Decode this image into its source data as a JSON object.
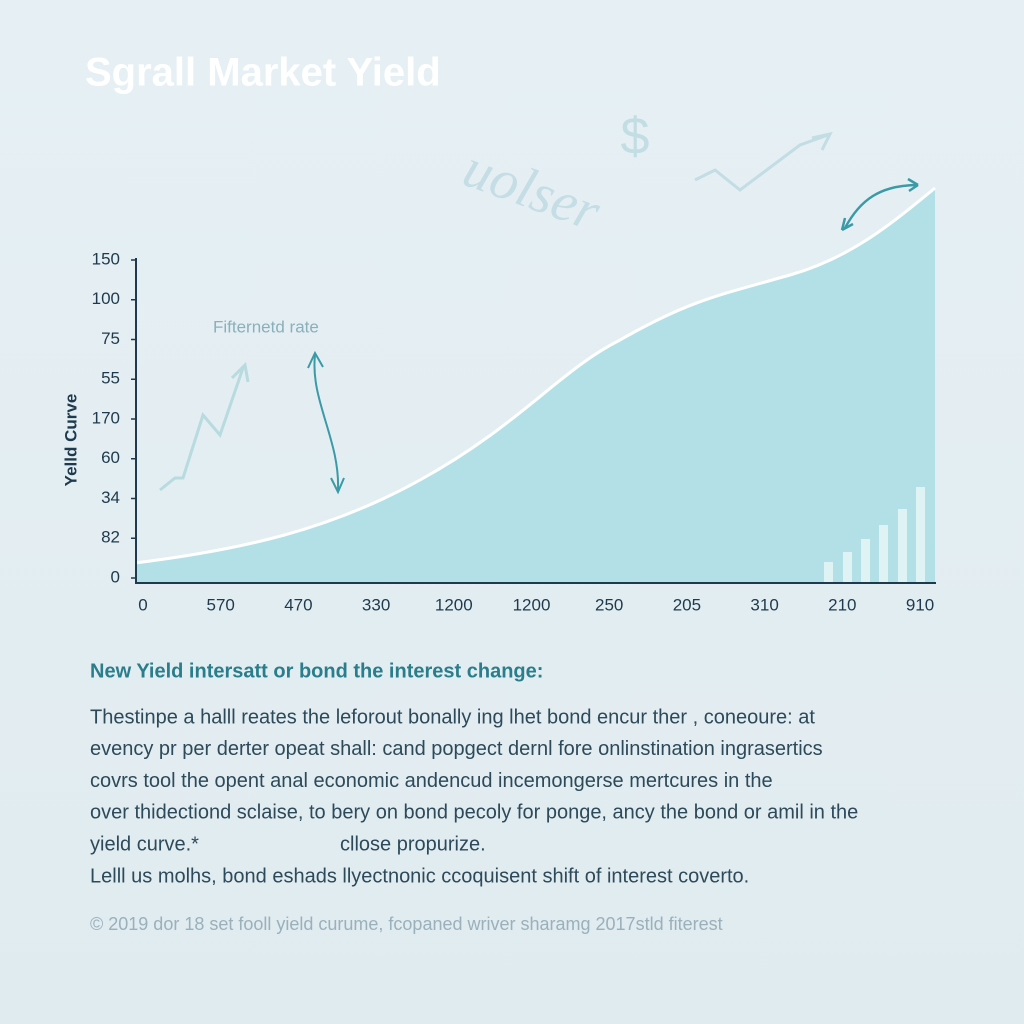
{
  "header": {
    "title": "Sgrall Market Yield"
  },
  "decor": {
    "script_word": "uolser",
    "currency": "$"
  },
  "chart": {
    "axis_label": "Yelld Curve",
    "annotation": "Fifternetd rate",
    "y_labels": [
      "150",
      "100",
      "75",
      "55",
      "170",
      "60",
      "34",
      "82",
      "0"
    ],
    "x_labels": [
      "0",
      "570",
      "470",
      "330",
      "1200",
      "1200",
      "250",
      "205",
      "310",
      "210",
      "910"
    ]
  },
  "body": {
    "heading": "New Yield intersatt or bond the interest change:",
    "lines": [
      "Thestinpe a halll reates the  leforout bonally ing lhet bond encur ther , coneoure: at",
      "evency pr per derter opeat shall: cand popgect dernl fore onlinstination ingrasertics",
      "covrs tool the opent anal economic andencud incemongerse mertcures  in the",
      "over thidectiond sclaise, to bery on bond pecoly for ponge, ancy the bond or amil in the",
      "yield curve.*",
      "Lelll us molhs, bond eshads llyectnonic ccoquisent shift of interest coverto."
    ],
    "aside": "cllose propurize."
  },
  "footer": {
    "text": "© 2019 dor 18 set fooll yield curume, fcopaned wriver sharamg 2017stld fiterest"
  }
}
